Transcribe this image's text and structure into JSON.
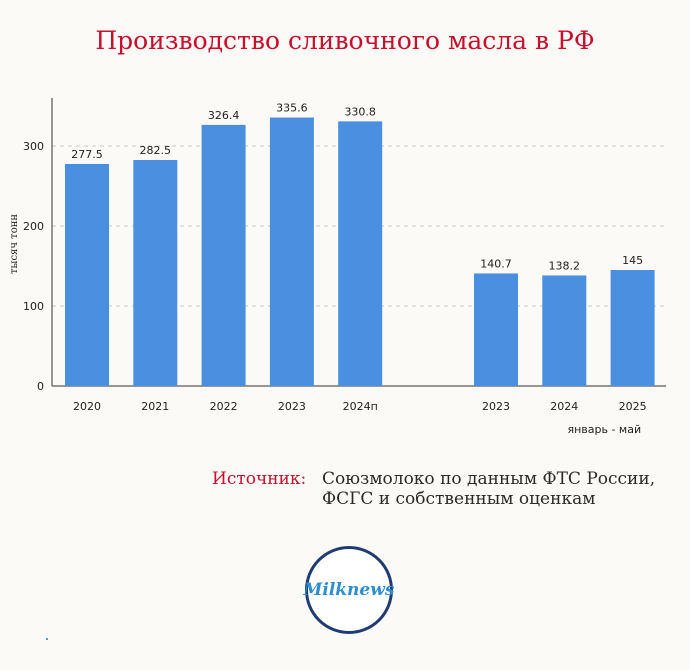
{
  "title": "Производство сливочного масла в РФ",
  "chart_data": {
    "type": "bar",
    "ylabel": "тысяч тонн",
    "ylim": [
      0,
      360
    ],
    "yticks": [
      0,
      100,
      200,
      300
    ],
    "grid": true,
    "bar_color": "#4a8fe0",
    "groups": [
      {
        "label": "",
        "categories": [
          "2020",
          "2021",
          "2022",
          "2023",
          "2024п"
        ],
        "values": [
          277.5,
          282.5,
          326.4,
          335.6,
          330.8
        ],
        "value_labels": [
          "277.5",
          "282.5",
          "326.4",
          "335.6",
          "330.8"
        ]
      },
      {
        "label": "январь - май",
        "categories": [
          "2023",
          "2024",
          "2025"
        ],
        "values": [
          140.7,
          138.2,
          145
        ],
        "value_labels": [
          "140.7",
          "138.2",
          "145"
        ]
      }
    ]
  },
  "source": {
    "label": "Источник:",
    "text": "Союзмолоко по данным ФТС России, ФСГС и собственным оценкам"
  },
  "logo": {
    "text": "Milknews"
  }
}
